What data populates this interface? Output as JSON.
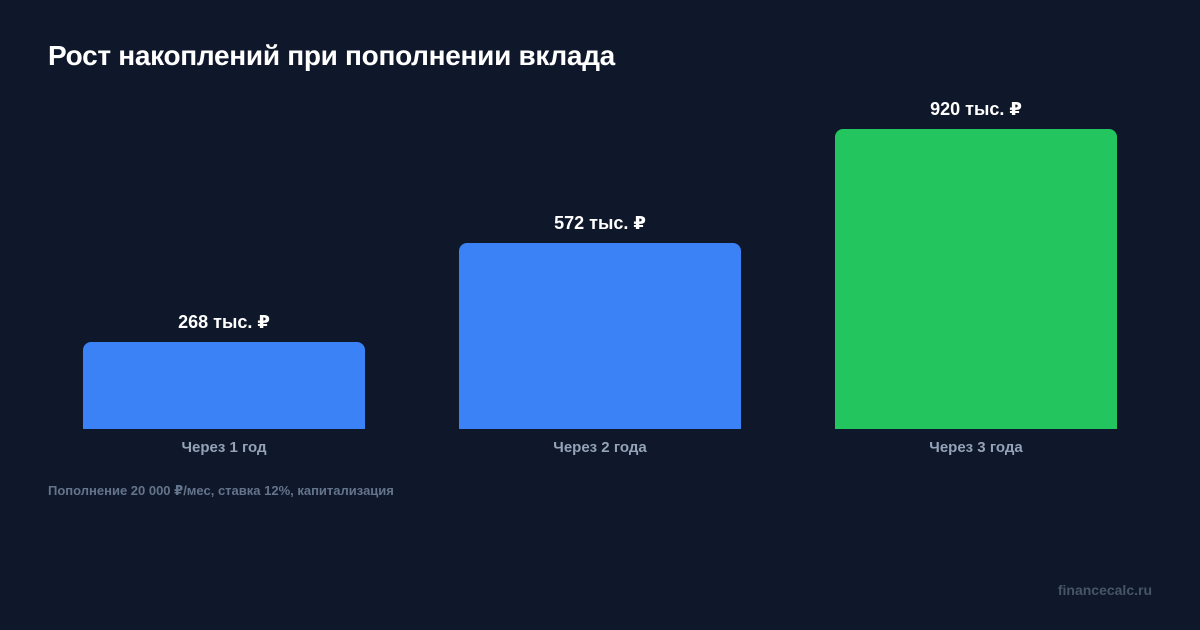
{
  "title": "Рост накоплений при пополнении вклада",
  "note": "Пополнение 20 000 ₽/мес, ставка 12%, капитализация",
  "brand": "financecalc.ru",
  "bars": [
    {
      "label": "Через 1 год",
      "value_label": "268 тыс. ₽",
      "value": 268,
      "color": "#3b82f6"
    },
    {
      "label": "Через 2 года",
      "value_label": "572 тыс. ₽",
      "value": 572,
      "color": "#3b82f6"
    },
    {
      "label": "Через 3 года",
      "value_label": "920 тыс. ₽",
      "value": 920,
      "color": "#22c55e"
    }
  ],
  "chart_data": {
    "type": "bar",
    "title": "Рост накоплений при пополнении вклада",
    "subtitle": "Пополнение 20 000 ₽/мес, ставка 12%, капитализация",
    "categories": [
      "Через 1 год",
      "Через 2 года",
      "Через 3 года"
    ],
    "values": [
      268,
      572,
      920
    ],
    "value_labels": [
      "268 тыс. ₽",
      "572 тыс. ₽",
      "920 тыс. ₽"
    ],
    "unit": "тыс. ₽",
    "colors": [
      "#3b82f6",
      "#3b82f6",
      "#22c55e"
    ],
    "xlabel": "",
    "ylabel": "",
    "grid": false,
    "legend": "none"
  }
}
